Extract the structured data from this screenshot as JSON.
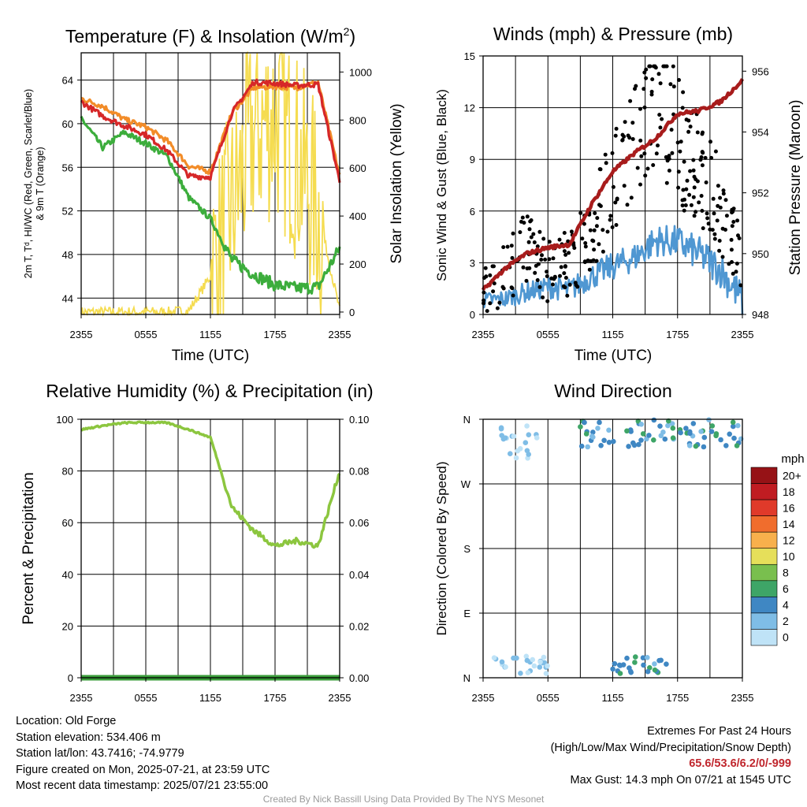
{
  "panels": [
    {
      "title": "Temperature (F) & Insolation (W/m",
      "title_sup": "2",
      "title_tail": ")",
      "xlabel": "Time (UTC)",
      "ylabel_left_lines": [
        "2m T, Tᵈ, HI/WC (Red, Green, Scarlet/Blue)",
        "& 9m T (Orange)"
      ],
      "ylabel_right": "Solar Insolation (Yellow)"
    },
    {
      "title": "Winds (mph) & Pressure (mb)",
      "xlabel": "Time (UTC)",
      "ylabel_left": "Sonic Wind & Gust (Blue, Black)",
      "ylabel_right": "Station Pressure (Maroon)"
    },
    {
      "title": "Relative Humidity (%) & Precipitation (in)",
      "ylabel_left": "Percent & Precipitation"
    },
    {
      "title": "Wind Direction",
      "ylabel_left": "Direction (Colored By Speed)",
      "legend_title": "mph"
    }
  ],
  "chart_data": [
    {
      "type": "line",
      "title": "Temperature (F) & Insolation (W/m2)",
      "xlabel": "Time (UTC)",
      "ylabel": "2m T, Td, HI/WC (Red, Green, Scarlet/Blue) & 9m T (Orange)",
      "y2label": "Solar Insolation (Yellow)",
      "xticks": [
        "2355",
        "0555",
        "1155",
        "1755",
        "2355"
      ],
      "x": [
        "2355",
        "0155",
        "0355",
        "0555",
        "0755",
        "0955",
        "1155",
        "1355",
        "1555",
        "1755",
        "1955",
        "2155",
        "2355"
      ],
      "ylim": [
        42.5,
        66.5
      ],
      "yticks": [
        44,
        48,
        52,
        56,
        60,
        64
      ],
      "y2lim": [
        -10,
        1080
      ],
      "y2ticks": [
        0,
        200,
        400,
        600,
        800,
        1000
      ],
      "series": [
        {
          "name": "2m T",
          "color": "#d62728",
          "axis": "left",
          "values": [
            62.0,
            60.7,
            59.8,
            59.0,
            57.5,
            55.2,
            55.1,
            61.0,
            63.8,
            63.7,
            63.5,
            63.6,
            54.7
          ]
        },
        {
          "name": "9m T",
          "color": "#f28c28",
          "axis": "left",
          "values": [
            62.3,
            61.6,
            60.4,
            59.7,
            58.4,
            56.1,
            55.6,
            61.0,
            63.3,
            63.4,
            63.3,
            63.8,
            55.2
          ]
        },
        {
          "name": "Td",
          "color": "#3cad3c",
          "axis": "left",
          "values": [
            60.5,
            57.8,
            59.2,
            58.2,
            57.0,
            53.2,
            51.3,
            47.5,
            46.2,
            45.2,
            44.9,
            45.0,
            48.6
          ]
        },
        {
          "name": "Solar Insolation",
          "color": "#f5dc50",
          "axis": "right",
          "values": [
            0,
            0,
            0,
            0,
            0,
            5,
            150,
            420,
            750,
            820,
            650,
            420,
            5
          ]
        }
      ]
    },
    {
      "type": "line",
      "title": "Winds (mph) & Pressure (mb)",
      "xlabel": "Time (UTC)",
      "ylabel": "Sonic Wind & Gust (Blue, Black)",
      "y2label": "Station Pressure (Maroon)",
      "xticks": [
        "2355",
        "0555",
        "1155",
        "1755",
        "2355"
      ],
      "x": [
        "2355",
        "0155",
        "0355",
        "0555",
        "0755",
        "0955",
        "1155",
        "1355",
        "1555",
        "1755",
        "1955",
        "2155",
        "2355"
      ],
      "ylim": [
        0,
        15
      ],
      "yticks": [
        0,
        3,
        6,
        9,
        12,
        15
      ],
      "y2lim": [
        948,
        956.5
      ],
      "y2ticks": [
        948,
        950,
        952,
        954,
        956
      ],
      "series": [
        {
          "name": "Sonic Wind",
          "color": "#4f97d2",
          "axis": "left",
          "values": [
            0.8,
            0.9,
            1.3,
            1.6,
            1.4,
            2.2,
            2.8,
            3.3,
            4.3,
            4.2,
            3.5,
            2.6,
            0.8
          ]
        },
        {
          "name": "Gust",
          "color": "#000000",
          "axis": "left",
          "style": "points",
          "values": [
            1.1,
            2.3,
            3.8,
            2.6,
            3.0,
            5.0,
            7.5,
            10.2,
            12.4,
            10.1,
            8.4,
            6.2,
            2.6
          ]
        },
        {
          "name": "Station Pressure",
          "color": "#a81c1c",
          "axis": "right",
          "values": [
            948.8,
            949.5,
            950.0,
            950.2,
            950.3,
            951.6,
            952.7,
            953.3,
            953.8,
            954.6,
            954.7,
            955.0,
            955.7
          ]
        }
      ]
    },
    {
      "type": "line",
      "title": "Relative Humidity (%) & Precipitation (in)",
      "ylabel": "Percent & Precipitation",
      "xticks": [
        "2355",
        "0555",
        "1155",
        "1755",
        "2355"
      ],
      "x": [
        "2355",
        "0155",
        "0355",
        "0555",
        "0755",
        "0955",
        "1155",
        "1355",
        "1555",
        "1755",
        "1955",
        "2155",
        "2355"
      ],
      "ylim": [
        0,
        100
      ],
      "yticks": [
        0,
        20,
        40,
        60,
        80,
        100
      ],
      "y2lim": [
        0,
        0.1
      ],
      "y2ticks": [
        "0.00",
        "0.02",
        "0.04",
        "0.06",
        "0.08",
        "0.10"
      ],
      "series": [
        {
          "name": "Relative Humidity",
          "color": "#8cc63f",
          "axis": "left",
          "values": [
            96,
            97.5,
            98.6,
            98.8,
            98.6,
            96,
            93,
            66,
            57,
            51,
            53,
            51,
            80
          ]
        },
        {
          "name": "Precipitation",
          "color": "#3a9d3a",
          "axis": "right",
          "values": [
            0,
            0,
            0,
            0,
            0,
            0,
            0,
            0,
            0,
            0,
            0,
            0,
            0
          ]
        }
      ]
    },
    {
      "type": "scatter",
      "title": "Wind Direction",
      "ylabel": "Direction (Colored By Speed)",
      "xticks": [
        "2355",
        "0555",
        "1155",
        "1755",
        "2355"
      ],
      "yticks": [
        "N",
        "E",
        "S",
        "W",
        "N"
      ],
      "ylim": [
        0,
        360
      ],
      "legend": {
        "title": "mph",
        "levels": [
          "0",
          "2",
          "4",
          "6",
          "8",
          "10",
          "12",
          "14",
          "16",
          "18",
          "20+"
        ],
        "colors": [
          "#bfe3f7",
          "#7fbde6",
          "#3f87c3",
          "#3ea567",
          "#79bf4e",
          "#e6df5a",
          "#f8b04c",
          "#f06d2d",
          "#e03a2a",
          "#c01c22",
          "#961216"
        ]
      },
      "clusters": [
        {
          "time": "0055-0455",
          "direction_deg": [
            300,
            355
          ],
          "speed_mph": [
            0,
            2
          ]
        },
        {
          "time": "0055-0555",
          "direction_deg": [
            5,
            30
          ],
          "speed_mph": [
            0,
            2
          ]
        },
        {
          "time": "1155-1655",
          "direction_deg": [
            5,
            30
          ],
          "speed_mph": [
            2,
            6
          ]
        },
        {
          "time": "0855-2355",
          "direction_deg": [
            320,
            360
          ],
          "speed_mph": [
            2,
            6
          ]
        }
      ]
    }
  ],
  "info": {
    "location": "Location: Old Forge",
    "elevation": "Station elevation: 534.406 m",
    "latlon": "Station lat/lon: 43.7416; -74.9779",
    "created": "Figure created on Mon, 2025-07-21, at 23:59 UTC",
    "recent": "Most recent data timestamp: 2025/07/21 23:55:00"
  },
  "extremes": {
    "title": "Extremes For Past 24 Hours",
    "subtitle": "(High/Low/Max Wind/Precipitation/Snow Depth)",
    "values": "65.6/53.6/6.2/0/-999",
    "gust": "Max Gust: 14.3 mph On 07/21 at 1545 UTC"
  },
  "credit": "Created By Nick Bassill Using Data Provided By The NYS Mesonet"
}
